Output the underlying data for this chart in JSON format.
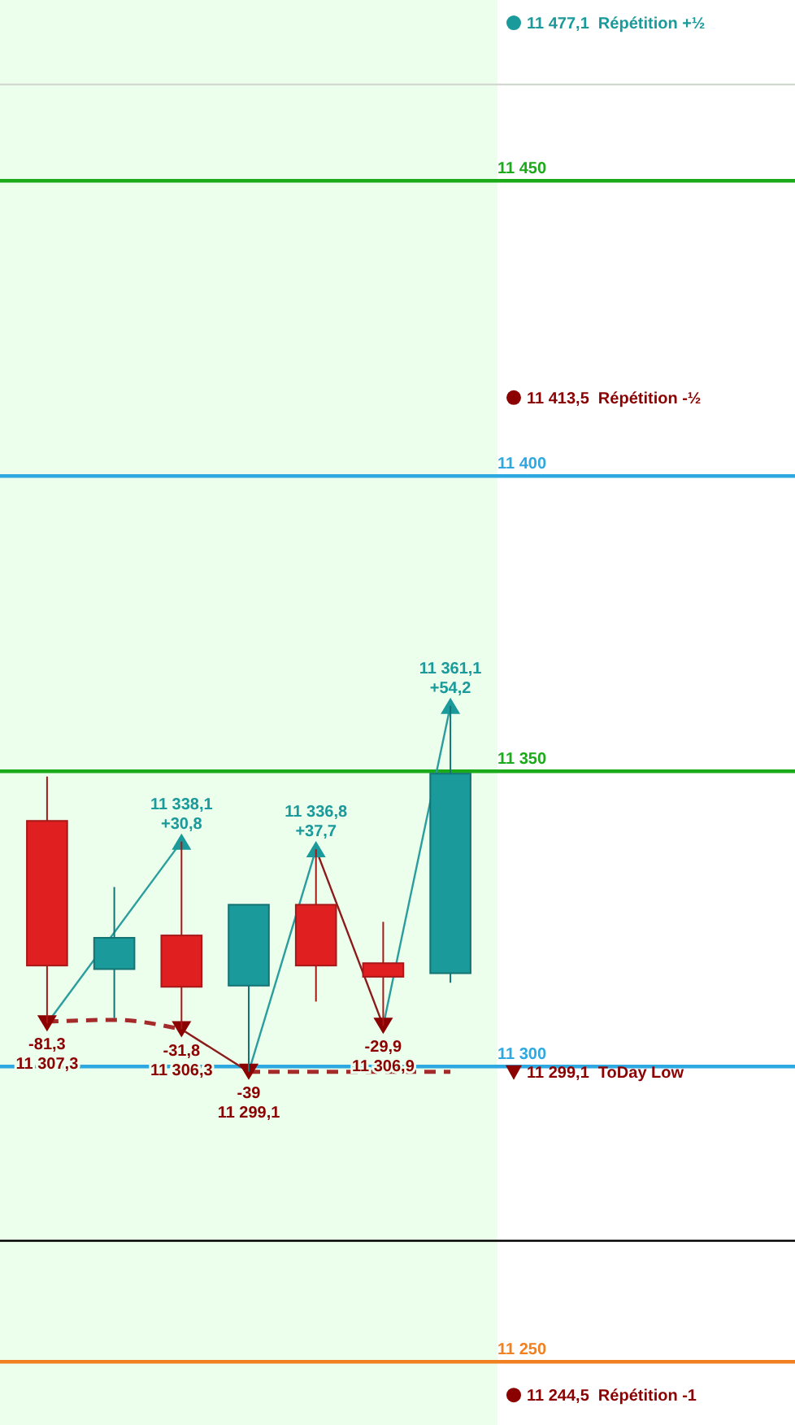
{
  "chart_data": {
    "type": "candlestick",
    "categories": [
      null,
      null,
      null,
      null,
      null,
      null,
      null
    ],
    "ohlc": [
      [
        11341.6,
        11349.1,
        11307.3,
        11317.1
      ],
      [
        11316.5,
        11330.4,
        11308.2,
        11321.8
      ],
      [
        11322.2,
        11338.1,
        11306.3,
        11313.5
      ],
      [
        11313.7,
        11327.4,
        11299.1,
        11327.4
      ],
      [
        11327.4,
        11336.8,
        11311.0,
        11317.1
      ],
      [
        11317.5,
        11324.5,
        11306.9,
        11315.2
      ],
      [
        11315.8,
        11361.1,
        11314.2,
        11349.6
      ]
    ],
    "colors": [
      "#e02020",
      "#1a9a9a",
      "#e02020",
      "#1a9a9a",
      "#e02020",
      "#e02020",
      "#1a9a9a"
    ],
    "ylim": [
      11239.3,
      11480.6
    ],
    "yticks": [
      {
        "value": 11250,
        "label": "11 250"
      },
      {
        "value": 11300,
        "label": "11 300"
      },
      {
        "value": 11350,
        "label": "11 350"
      },
      {
        "value": 11400,
        "label": "11 400"
      },
      {
        "value": 11450,
        "label": "11 450"
      }
    ],
    "ref_lines": [
      {
        "axis": "y",
        "value": 11450,
        "color": "#1aaa1a"
      },
      {
        "axis": "y",
        "value": 11400,
        "color": "#2ea8e0"
      },
      {
        "axis": "y",
        "value": 11350,
        "color": "#1aaa1a"
      },
      {
        "axis": "y",
        "value": 11300,
        "color": "#2ea8e0"
      },
      {
        "axis": "y",
        "value": 11250,
        "color": "#f08020"
      },
      {
        "axis": "y",
        "value": 11466.3,
        "color": "#d0d8d0"
      },
      {
        "axis": "y",
        "value": 11270.5,
        "color": "#000000"
      }
    ],
    "series": [
      {
        "type": "line",
        "color": "#2a9d9d",
        "values": [
          11307.3,
          null,
          11338.1,
          null,
          null,
          null,
          null
        ]
      },
      {
        "type": "line",
        "color": "#2a9d9d",
        "values": [
          null,
          null,
          null,
          11299.1,
          11336.8,
          null,
          null
        ]
      },
      {
        "type": "line",
        "color": "#2a9d9d",
        "values": [
          null,
          null,
          null,
          null,
          null,
          11306.9,
          11361.1
        ]
      },
      {
        "type": "line",
        "color": "#8b1a1a",
        "values": [
          null,
          null,
          11306.3,
          11299.1,
          null,
          null,
          null
        ]
      },
      {
        "type": "line",
        "color": "#8b1a1a",
        "values": [
          null,
          null,
          null,
          null,
          11336.8,
          11306.9,
          null
        ]
      },
      {
        "type": "line",
        "color": "#a52a2a",
        "line_style": "dashed",
        "values": [
          11307.6,
          11307.9,
          11306.3,
          null,
          null,
          null,
          null
        ]
      },
      {
        "type": "line",
        "color": "#a52a2a",
        "line_style": "dashed",
        "values": [
          null,
          null,
          null,
          11299.1,
          11299.1,
          11299.1,
          11299.1
        ]
      },
      {
        "type": "scatter",
        "marker": "triangle",
        "color": "#1a9a9a",
        "values": [
          null,
          null,
          11338.1,
          null,
          11336.8,
          null,
          11361.1
        ],
        "value_labels": [
          null,
          null,
          "11 338,1\n+30,8",
          null,
          "11 336,8\n+37,7",
          null,
          "11 361,1\n+54,2"
        ]
      },
      {
        "type": "scatter",
        "marker": "triangle",
        "color": "#8b0000",
        "values": [
          11307.3,
          null,
          11306.3,
          11299.1,
          null,
          11306.9,
          null
        ],
        "value_labels": [
          "-81,3\n11 307,3",
          null,
          "-31,8\n11 306,3",
          "-39\n11 299,1",
          null,
          "-29,9\n11 306,9",
          null
        ]
      }
    ],
    "annotations": [
      "11 477,1  Répétition +½",
      "11 413,5  Répétition -½",
      {
        "text": "11 299,1  ToDay Low",
        "y": 11299.1
      },
      "11 244,5  Répétition -1"
    ]
  }
}
